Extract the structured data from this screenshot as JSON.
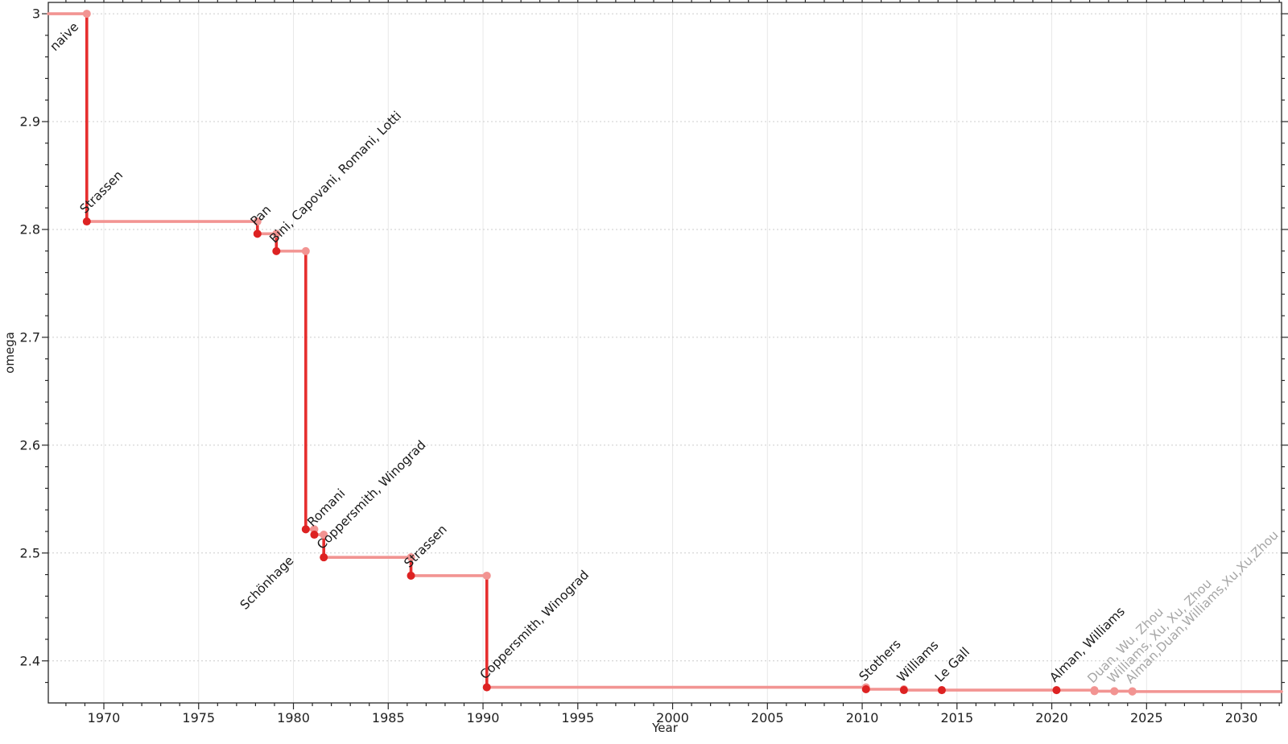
{
  "chart_data": {
    "type": "line",
    "subtype": "step-post",
    "title": "",
    "xlabel": "Year",
    "ylabel": "omega",
    "x_range": [
      1967.07,
      2032.12
    ],
    "y_range": [
      2.361,
      3.0105
    ],
    "x_ticks": {
      "major": [
        1970,
        1975,
        1980,
        1985,
        1990,
        1995,
        2000,
        2005,
        2010,
        2015,
        2020,
        2025,
        2030
      ],
      "minor_step": 1
    },
    "y_ticks": {
      "major": [
        2.4,
        2.5,
        2.6,
        2.7,
        2.8,
        2.9,
        3.0
      ],
      "labels": [
        "2.4",
        "2.5",
        "2.6",
        "2.7",
        "2.8",
        "2.9",
        "3"
      ],
      "minor_step": 0.02
    },
    "grid": {
      "horizontal": "dotted",
      "vertical": "solid"
    },
    "legend": "none",
    "origin": {
      "label": "naive",
      "omega": 3.0,
      "label_year": 1967.52,
      "label_omega": 2.958
    },
    "events": [
      {
        "label": "Strassen",
        "year": 1969.1,
        "omega": 2.8074,
        "muted": false
      },
      {
        "label": "Pan",
        "year": 1978.1,
        "omega": 2.796,
        "muted": false
      },
      {
        "label": "Bini, Capovani, Romani, Lotti",
        "year": 1979.1,
        "omega": 2.7799,
        "muted": false
      },
      {
        "label": "Schönhage",
        "year": 1980.65,
        "omega": 2.522,
        "muted": false,
        "label_side": "below"
      },
      {
        "label": "Romani",
        "year": 1981.1,
        "omega": 2.517,
        "muted": false
      },
      {
        "label": "Coppersmith, Winograd",
        "year": 1981.6,
        "omega": 2.496,
        "muted": false
      },
      {
        "label": "Strassen",
        "year": 1986.2,
        "omega": 2.479,
        "muted": false
      },
      {
        "label": "Coppersmith, Winograd",
        "year": 1990.2,
        "omega": 2.3755,
        "muted": false
      },
      {
        "label": "Stothers",
        "year": 2010.2,
        "omega": 2.3737,
        "muted": false
      },
      {
        "label": "Williams",
        "year": 2012.2,
        "omega": 2.3729,
        "muted": false
      },
      {
        "label": "Le Gall",
        "year": 2014.2,
        "omega": 2.3728639,
        "muted": false
      },
      {
        "label": "Alman, Williams",
        "year": 2020.25,
        "omega": 2.3728596,
        "muted": false
      },
      {
        "label": "Duan, Wu, Zhou",
        "year": 2022.25,
        "omega": 2.37188,
        "muted": true
      },
      {
        "label": "Williams, Xu, Xu, Zhou",
        "year": 2023.3,
        "omega": 2.371866,
        "muted": true
      },
      {
        "label": "Alman,Duan,Williams,Xu,Xu,Zhou",
        "year": 2024.25,
        "omega": 2.371552,
        "muted": true
      }
    ],
    "colors": {
      "drop_line": "#e62e2e",
      "plateau_line": "#f29492",
      "record_point": "#dd2222",
      "corner_point": "#f29492",
      "muted_point": "#f29492",
      "label": "#1a1a1a",
      "muted_label": "#a6a6a6",
      "axis": "#262626",
      "grid_horizontal": "#cccccc",
      "grid_vertical": "#e8e8e8",
      "background": "#ffffff"
    }
  }
}
